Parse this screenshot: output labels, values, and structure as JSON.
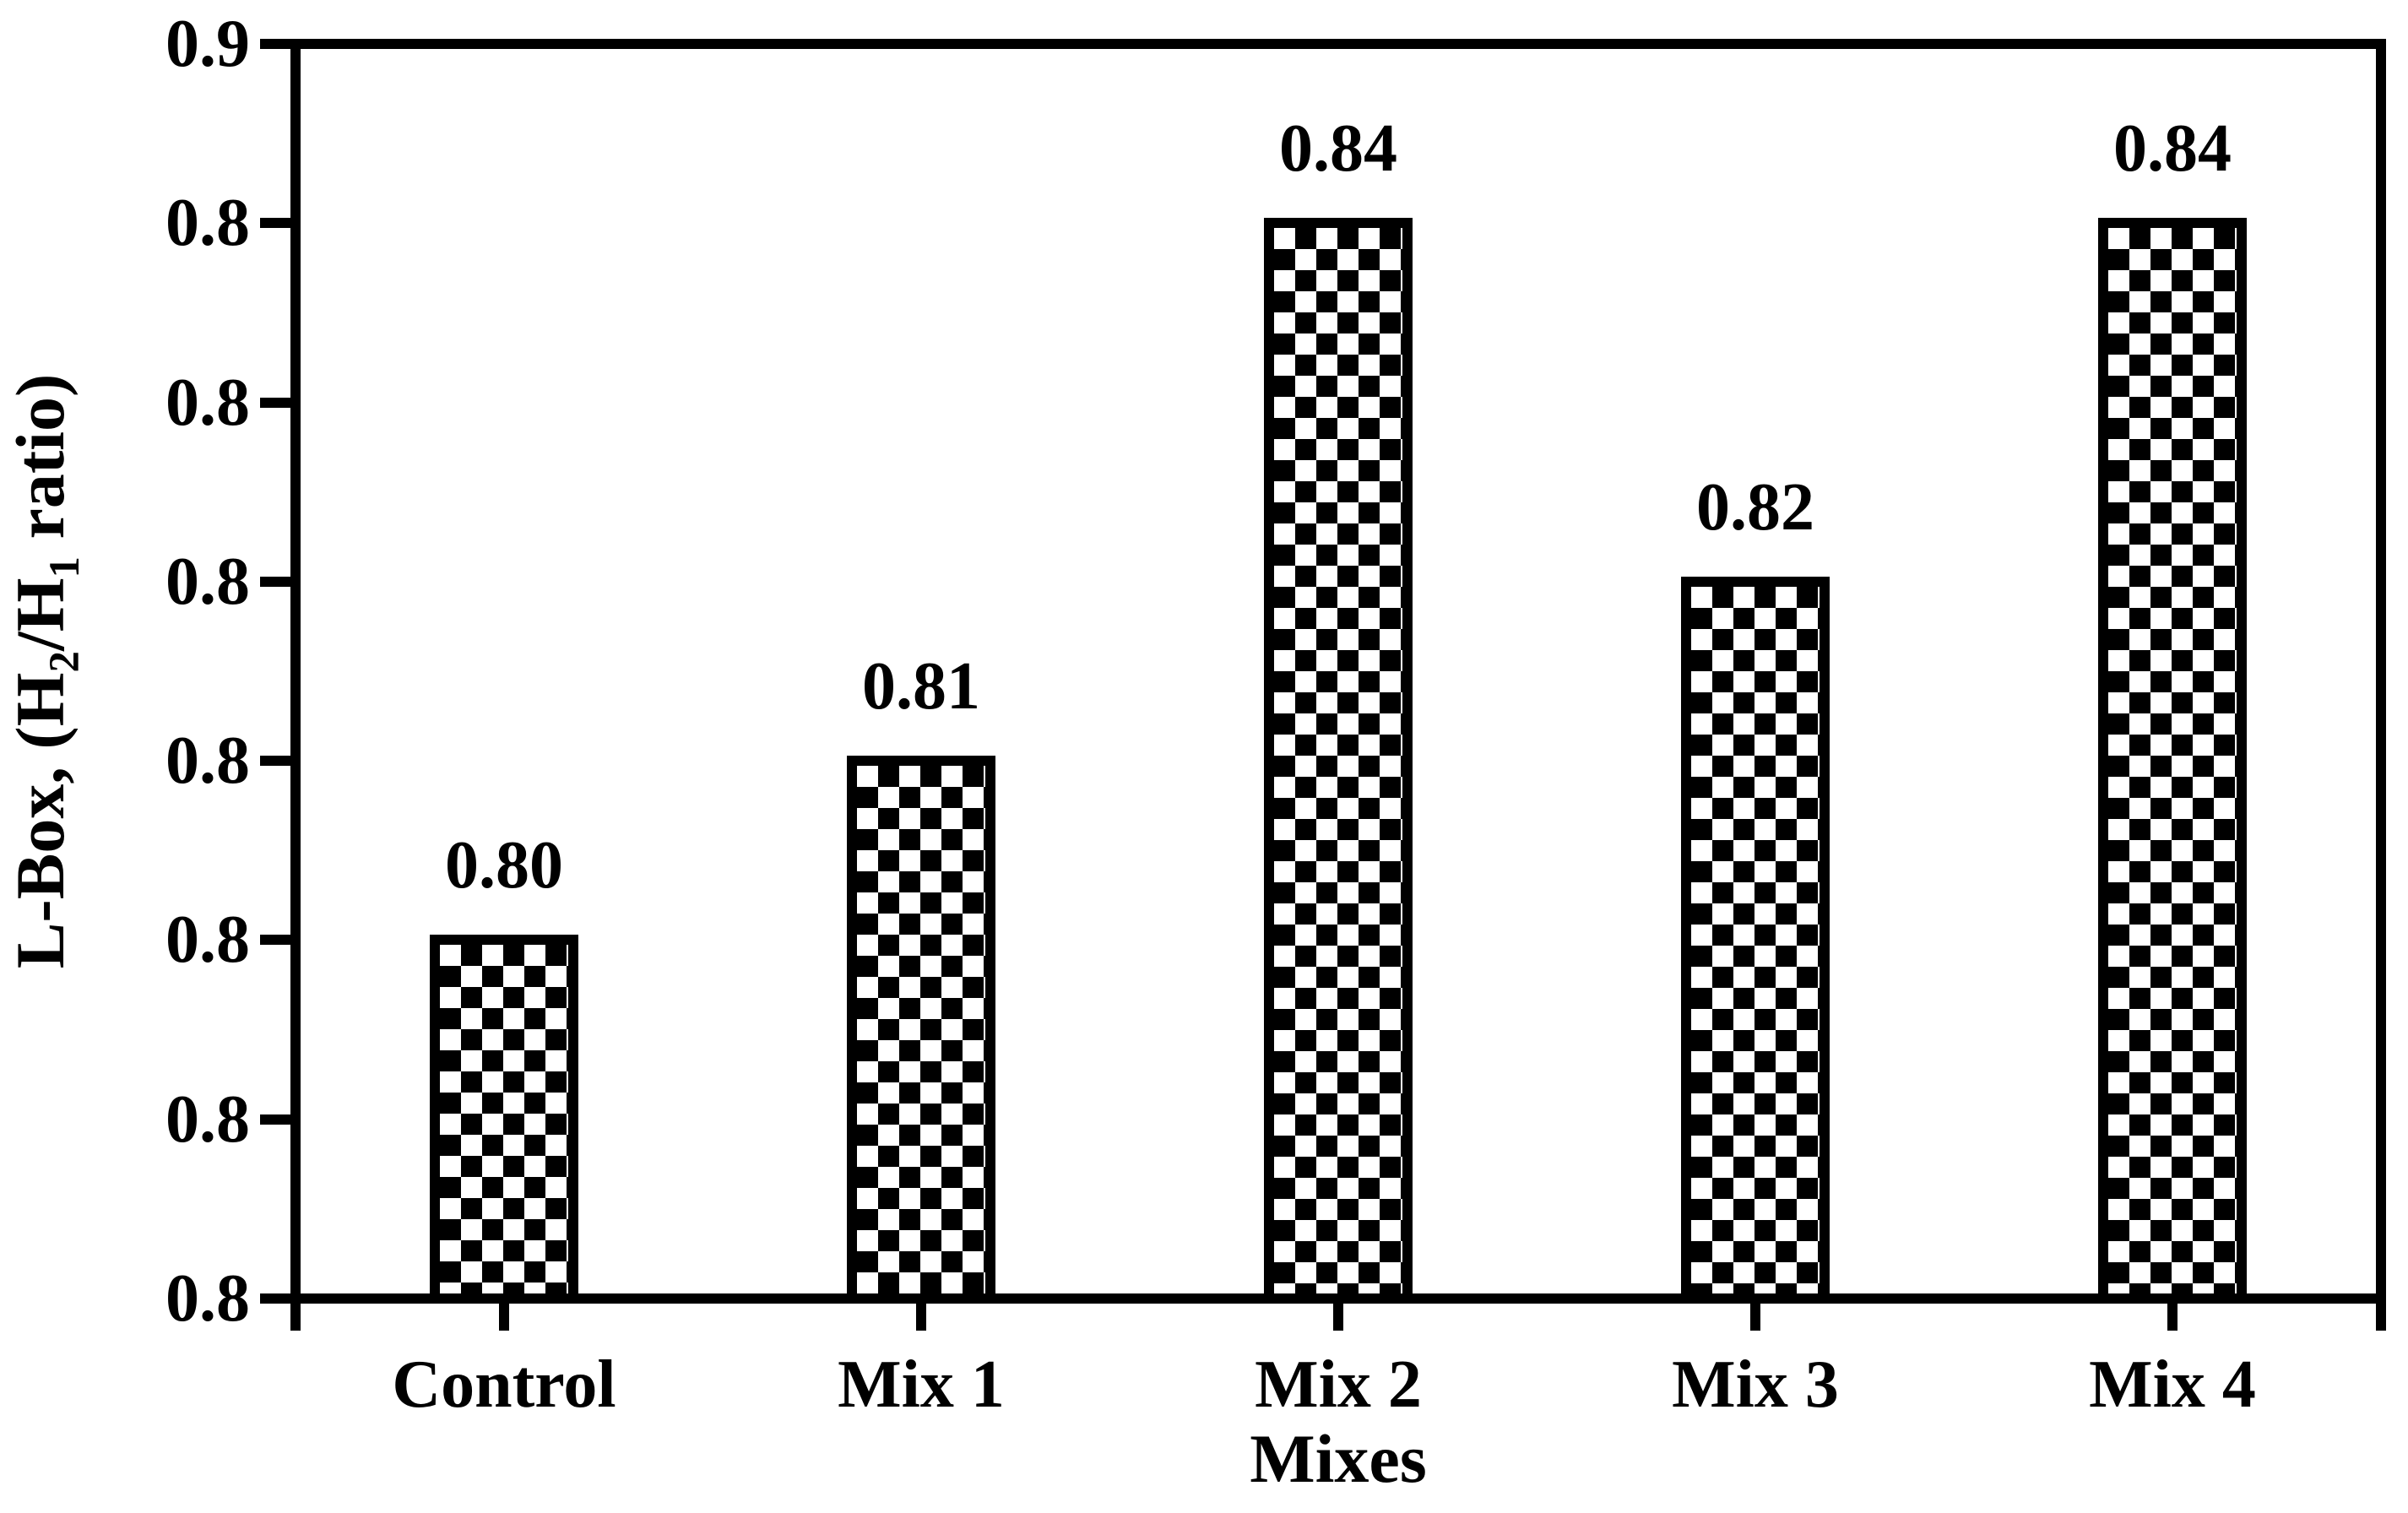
{
  "chart_data": {
    "type": "bar",
    "title": "",
    "categories": [
      "Control",
      "Mix 1",
      "Mix 2",
      "Mix 3",
      "Mix 4"
    ],
    "values": [
      0.8,
      0.81,
      0.84,
      0.82,
      0.84
    ],
    "value_labels": [
      "0.80",
      "0.81",
      "0.84",
      "0.82",
      "0.84"
    ],
    "xlabel": "Mixes",
    "ylabel": "L-Box, (H2/H1 ratio)",
    "ylabel_parts": {
      "p1": "L-Box, (H",
      "sub1": "2",
      "p2": "/H",
      "sub2": "1",
      "p3": " ratio)"
    },
    "ylim": [
      0.78,
      0.85
    ],
    "y_tick_count": 8,
    "y_tick_labels_top_to_bottom": [
      "0.9",
      "0.8",
      "0.8",
      "0.8",
      "0.8",
      "0.8",
      "0.8",
      "0.8"
    ],
    "grid": "off",
    "legend": "none",
    "bar_fill": "black-white-checkerboard",
    "bar_border_color": "#000000",
    "axis_color": "#000000",
    "text_color": "#000000",
    "background_color": "#ffffff"
  }
}
